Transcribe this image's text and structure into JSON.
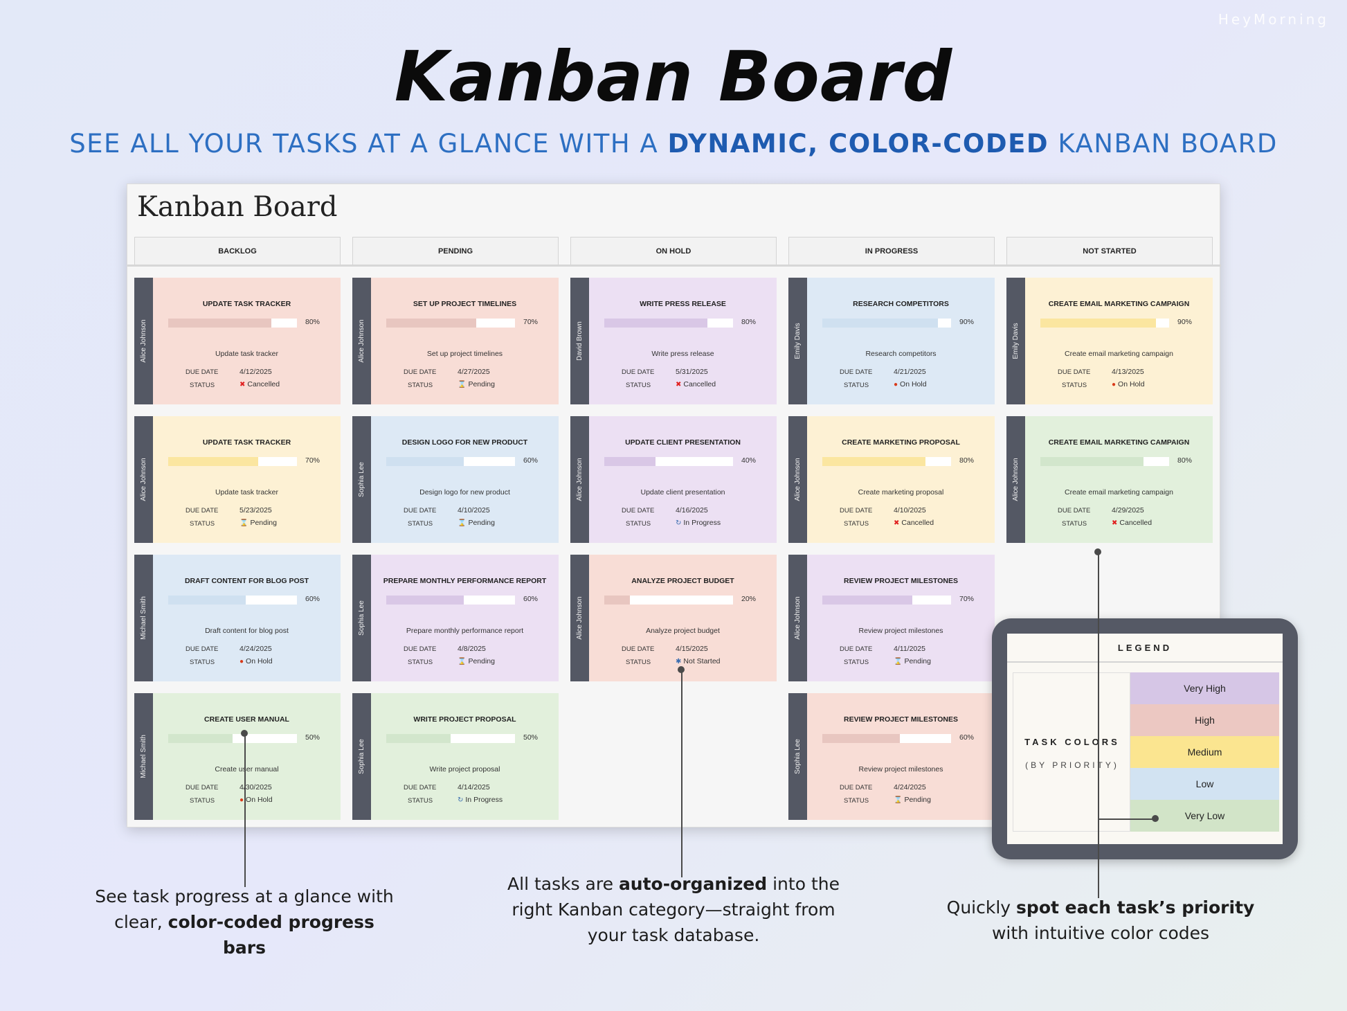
{
  "brand": "HeyMorning",
  "hero": {
    "title": "Kanban Board",
    "subtitle_prefix": "SEE ALL YOUR TASKS AT A GLANCE WITH A ",
    "subtitle_emphasis": "DYNAMIC, COLOR-CODED",
    "subtitle_suffix": " KANBAN BOARD"
  },
  "board": {
    "title": "Kanban Board",
    "labels": {
      "due": "DUE DATE",
      "status": "STATUS"
    },
    "columns": [
      {
        "header": "BACKLOG",
        "cards": [
          {
            "assignee": "Alice Johnson",
            "title": "UPDATE TASK TRACKER",
            "progress": 80,
            "progress_label": "80%",
            "desc": "Update task tracker",
            "due": "4/12/2025",
            "status": "Cancelled",
            "status_icon": "✖",
            "status_icon_color": "#e02020",
            "bg": "#f8ddd6",
            "fill": "#e8c6c0"
          },
          {
            "assignee": "Alice Johnson",
            "title": "UPDATE TASK TRACKER",
            "progress": 70,
            "progress_label": "70%",
            "desc": "Update task tracker",
            "due": "5/23/2025",
            "status": "Pending",
            "status_icon": "⌛",
            "status_icon_color": "#6a5030",
            "bg": "#fdf1d4",
            "fill": "#fbe6a0"
          },
          {
            "assignee": "Michael Smith",
            "title": "DRAFT CONTENT FOR BLOG POST",
            "progress": 60,
            "progress_label": "60%",
            "desc": "Draft content for blog post",
            "due": "4/24/2025",
            "status": "On Hold",
            "status_icon": "●",
            "status_icon_color": "#d83a1a",
            "bg": "#dde9f5",
            "fill": "#cfe0f0"
          },
          {
            "assignee": "Michael Smith",
            "title": "CREATE USER MANUAL",
            "progress": 50,
            "progress_label": "50%",
            "desc": "Create user manual",
            "due": "4/30/2025",
            "status": "On Hold",
            "status_icon": "●",
            "status_icon_color": "#d83a1a",
            "bg": "#e2f0dc",
            "fill": "#d2e6cc"
          }
        ]
      },
      {
        "header": "PENDING",
        "cards": [
          {
            "assignee": "Alice Johnson",
            "title": "SET UP PROJECT TIMELINES",
            "progress": 70,
            "progress_label": "70%",
            "desc": "Set up project timelines",
            "due": "4/27/2025",
            "status": "Pending",
            "status_icon": "⌛",
            "status_icon_color": "#6a5030",
            "bg": "#f8ddd6",
            "fill": "#e8c6c0"
          },
          {
            "assignee": "Sophia Lee",
            "title": "DESIGN LOGO FOR NEW PRODUCT",
            "progress": 60,
            "progress_label": "60%",
            "desc": "Design logo for new product",
            "due": "4/10/2025",
            "status": "Pending",
            "status_icon": "⌛",
            "status_icon_color": "#6a5030",
            "bg": "#dde9f5",
            "fill": "#cfe0f0"
          },
          {
            "assignee": "Sophia Lee",
            "title": "PREPARE MONTHLY PERFORMANCE REPORT",
            "progress": 60,
            "progress_label": "60%",
            "desc": "Prepare monthly performance report",
            "due": "4/8/2025",
            "status": "Pending",
            "status_icon": "⌛",
            "status_icon_color": "#6a5030",
            "bg": "#ece0f3",
            "fill": "#d9c7e6"
          },
          {
            "assignee": "Sophia Lee",
            "title": "WRITE PROJECT PROPOSAL",
            "progress": 50,
            "progress_label": "50%",
            "desc": "Write project proposal",
            "due": "4/14/2025",
            "status": "In Progress",
            "status_icon": "↻",
            "status_icon_color": "#3a6db0",
            "bg": "#e2f0dc",
            "fill": "#d2e6cc"
          }
        ]
      },
      {
        "header": "ON HOLD",
        "cards": [
          {
            "assignee": "David Brown",
            "title": "WRITE PRESS RELEASE",
            "progress": 80,
            "progress_label": "80%",
            "desc": "Write press release",
            "due": "5/31/2025",
            "status": "Cancelled",
            "status_icon": "✖",
            "status_icon_color": "#e02020",
            "bg": "#ece0f3",
            "fill": "#d9c7e6"
          },
          {
            "assignee": "Alice Johnson",
            "title": "UPDATE CLIENT PRESENTATION",
            "progress": 40,
            "progress_label": "40%",
            "desc": "Update client presentation",
            "due": "4/16/2025",
            "status": "In Progress",
            "status_icon": "↻",
            "status_icon_color": "#3a6db0",
            "bg": "#ece0f3",
            "fill": "#d9c7e6"
          },
          {
            "assignee": "Alice Johnson",
            "title": "ANALYZE PROJECT BUDGET",
            "progress": 20,
            "progress_label": "20%",
            "desc": "Analyze project budget",
            "due": "4/15/2025",
            "status": "Not Started",
            "status_icon": "✱",
            "status_icon_color": "#3a6db0",
            "bg": "#f8ddd6",
            "fill": "#e8c6c0"
          }
        ]
      },
      {
        "header": "IN PROGRESS",
        "cards": [
          {
            "assignee": "Emily Davis",
            "title": "RESEARCH COMPETITORS",
            "progress": 90,
            "progress_label": "90%",
            "desc": "Research competitors",
            "due": "4/21/2025",
            "status": "On Hold",
            "status_icon": "●",
            "status_icon_color": "#d83a1a",
            "bg": "#dde9f5",
            "fill": "#cfe0f0"
          },
          {
            "assignee": "Alice Johnson",
            "title": "CREATE MARKETING PROPOSAL",
            "progress": 80,
            "progress_label": "80%",
            "desc": "Create marketing proposal",
            "due": "4/10/2025",
            "status": "Cancelled",
            "status_icon": "✖",
            "status_icon_color": "#e02020",
            "bg": "#fdf1d4",
            "fill": "#fbe6a0"
          },
          {
            "assignee": "Alice Johnson",
            "title": "REVIEW PROJECT MILESTONES",
            "progress": 70,
            "progress_label": "70%",
            "desc": "Review project milestones",
            "due": "4/11/2025",
            "status": "Pending",
            "status_icon": "⌛",
            "status_icon_color": "#6a5030",
            "bg": "#ece0f3",
            "fill": "#d9c7e6"
          },
          {
            "assignee": "Sophia Lee",
            "title": "REVIEW PROJECT MILESTONES",
            "progress": 60,
            "progress_label": "60%",
            "desc": "Review project milestones",
            "due": "4/24/2025",
            "status": "Pending",
            "status_icon": "⌛",
            "status_icon_color": "#6a5030",
            "bg": "#f8ddd6",
            "fill": "#e8c6c0"
          }
        ]
      },
      {
        "header": "NOT STARTED",
        "cards": [
          {
            "assignee": "Emily Davis",
            "title": "CREATE EMAIL MARKETING CAMPAIGN",
            "progress": 90,
            "progress_label": "90%",
            "desc": "Create email marketing campaign",
            "due": "4/13/2025",
            "status": "On Hold",
            "status_icon": "●",
            "status_icon_color": "#d83a1a",
            "bg": "#fdf1d4",
            "fill": "#fbe6a0"
          },
          {
            "assignee": "Alice Johnson",
            "title": "CREATE EMAIL MARKETING CAMPAIGN",
            "progress": 80,
            "progress_label": "80%",
            "desc": "Create email marketing campaign",
            "due": "4/29/2025",
            "status": "Cancelled",
            "status_icon": "✖",
            "status_icon_color": "#e02020",
            "bg": "#e2f0dc",
            "fill": "#d2e6cc"
          }
        ]
      }
    ]
  },
  "legend": {
    "title": "LEGEND",
    "caption_main": "TASK COLORS",
    "caption_sub": "(BY PRIORITY)",
    "items": [
      {
        "label": "Very High",
        "color": "#d6c6e6"
      },
      {
        "label": "High",
        "color": "#ecc8c2"
      },
      {
        "label": "Medium",
        "color": "#fbe590"
      },
      {
        "label": "Low",
        "color": "#d2e3f2"
      },
      {
        "label": "Very Low",
        "color": "#d2e4c8"
      }
    ]
  },
  "annotations": {
    "left": {
      "l1": "See task progress at a glance with",
      "l2_pre": "clear, ",
      "l2_bold": "color-coded progress bars",
      "l2_post": ""
    },
    "middle": {
      "l1_pre": "All tasks are ",
      "l1_bold": "auto-organized",
      "l1_post": " into the",
      "l2": "right Kanban category—straight from",
      "l3": "your task database."
    },
    "right": {
      "l1_pre": "Quickly ",
      "l1_bold": "spot each task’s priority",
      "l1_post": "",
      "l2": "with intuitive color codes"
    }
  }
}
